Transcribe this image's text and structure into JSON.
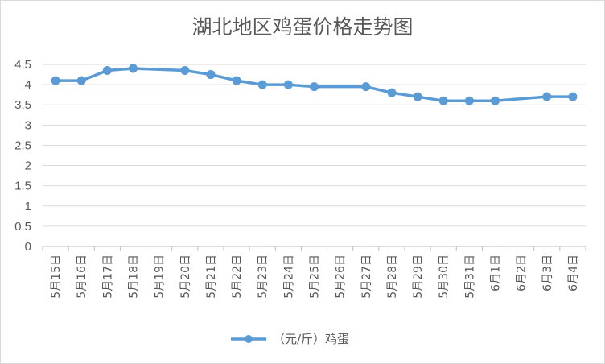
{
  "chart_data": {
    "type": "line",
    "title": "湖北地区鸡蛋价格走势图",
    "xlabel": "",
    "ylabel": "",
    "ylim": [
      0,
      4.5
    ],
    "yticks": [
      "0",
      "0.5",
      "1",
      "1.5",
      "2",
      "2.5",
      "3",
      "3.5",
      "4",
      "4.5"
    ],
    "grid": true,
    "legend_position": "bottom",
    "categories": [
      "5月15日",
      "5月16日",
      "5月17日",
      "5月18日",
      "5月19日",
      "5月20日",
      "5月21日",
      "5月22日",
      "5月23日",
      "5月24日",
      "5月25日",
      "5月26日",
      "5月27日",
      "5月28日",
      "5月29日",
      "5月30日",
      "5月31日",
      "6月1日",
      "6月2日",
      "6月3日",
      "6月4日"
    ],
    "series": [
      {
        "name": "（元/斤）鸡蛋",
        "color": "#5b9bd5",
        "values": [
          4.1,
          4.1,
          4.35,
          4.4,
          null,
          4.35,
          4.25,
          4.1,
          4.0,
          4.0,
          3.95,
          null,
          3.95,
          3.8,
          3.7,
          3.6,
          3.6,
          3.6,
          null,
          3.7,
          3.7
        ]
      }
    ]
  }
}
